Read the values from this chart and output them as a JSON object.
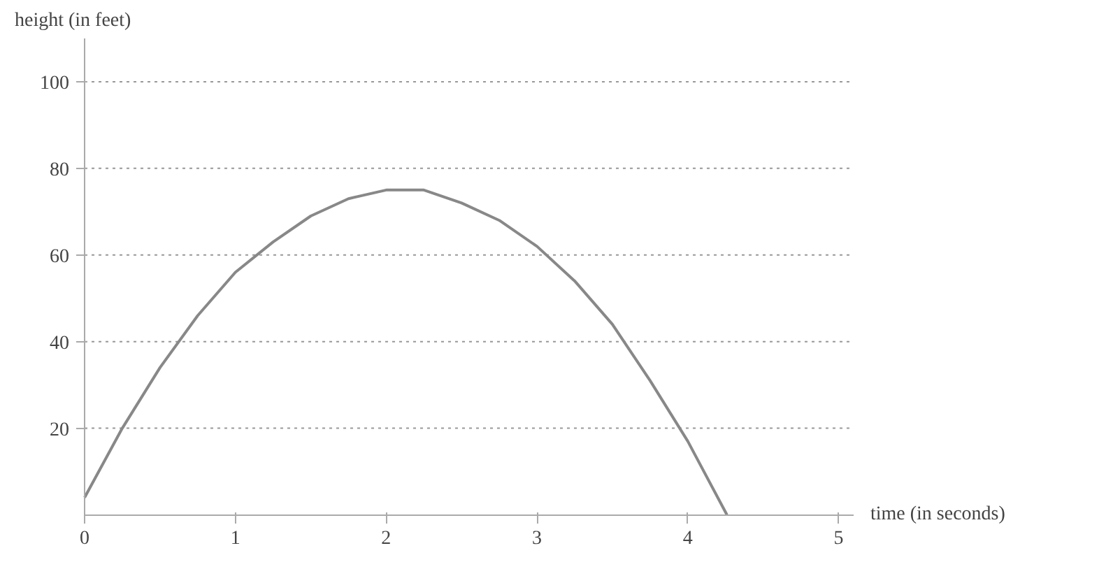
{
  "chart_data": {
    "type": "line",
    "xlabel": "time (in seconds)",
    "ylabel": "height (in feet)",
    "x": [
      0,
      0.25,
      0.5,
      0.75,
      1,
      1.25,
      1.5,
      1.75,
      2,
      2.25,
      2.5,
      2.75,
      3,
      3.25,
      3.5,
      3.75,
      4,
      4.26
    ],
    "series": [
      {
        "color": "#888888",
        "values": [
          4,
          20,
          34,
          46,
          56,
          63,
          69,
          73,
          75,
          75,
          72,
          68,
          62,
          54,
          44,
          31,
          17,
          0
        ]
      }
    ],
    "xlim": [
      0,
      5.1
    ],
    "ylim": [
      0,
      110
    ],
    "xticks": [
      0,
      1,
      2,
      3,
      4,
      5
    ],
    "yticks": [
      20,
      40,
      60,
      80,
      100
    ],
    "grid": "y",
    "marker": "none",
    "line_style": "solid"
  }
}
